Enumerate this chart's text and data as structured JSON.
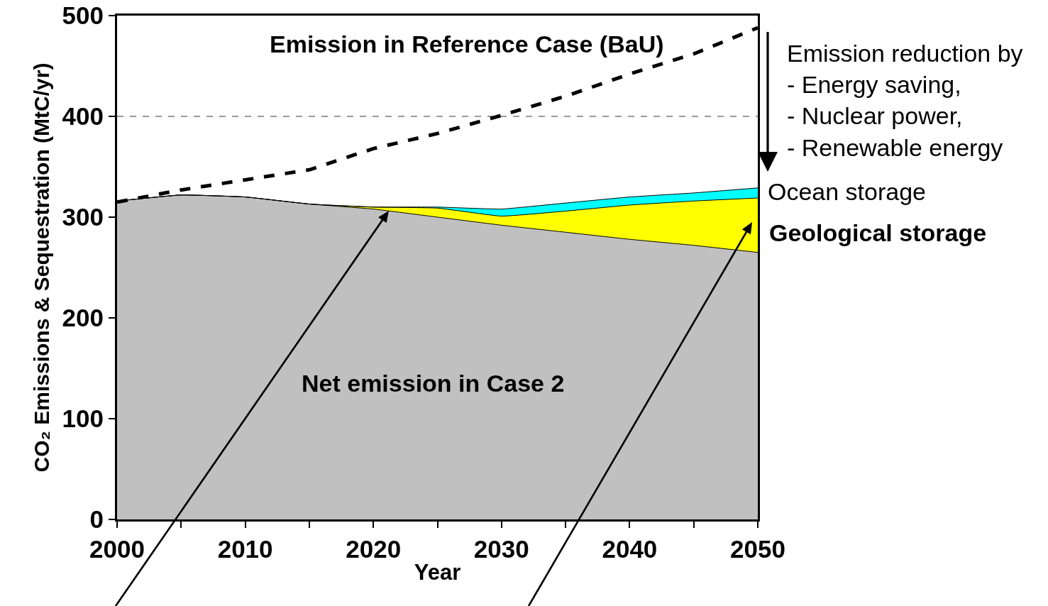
{
  "chart_data": {
    "type": "area",
    "stacked": true,
    "ylabel": "CO₂ Emissions & Sequestration (MtC/yr)",
    "xlabel": "Year",
    "x": [
      2000,
      2005,
      2010,
      2015,
      2020,
      2025,
      2030,
      2035,
      2040,
      2045,
      2050
    ],
    "series": [
      {
        "name": "Net emission in Case 2",
        "color": "#c0c0c0",
        "values": [
          316,
          322,
          320,
          313,
          308,
          300,
          292,
          285,
          278,
          272,
          265
        ]
      },
      {
        "name": "Geological storage",
        "color": "#ffff00",
        "values": [
          0,
          0,
          0,
          0,
          2,
          9,
          9,
          21,
          34,
          44,
          54
        ]
      },
      {
        "name": "Ocean storage",
        "color": "#00ffff",
        "values": [
          0,
          0,
          0,
          0,
          0,
          1,
          7,
          8,
          8,
          8,
          10
        ]
      },
      {
        "name": "Emission in Reference Case (BaU)",
        "type": "line",
        "color": "#000000",
        "line_style": "dashed",
        "values": [
          315,
          327,
          337,
          347,
          368,
          383,
          401,
          420,
          442,
          462,
          488
        ]
      }
    ],
    "xlim": [
      2000,
      2050
    ],
    "xticks": [
      2000,
      {
        "value": 2005,
        "label": null
      },
      2010,
      {
        "value": 2015,
        "label": null
      },
      2020,
      {
        "value": 2025,
        "label": null
      },
      2030,
      {
        "value": 2035,
        "label": null
      },
      2040,
      {
        "value": 2045,
        "label": null
      },
      2050
    ],
    "ylim": [
      0,
      500
    ],
    "yticks": [
      0,
      100,
      200,
      300,
      400,
      500
    ],
    "ref_lines": [
      {
        "axis": "y",
        "value": 400,
        "color": "#000000",
        "line_style": "dashed"
      }
    ],
    "annotations": [
      "Emission reduction by\n- Energy saving,\n- Nuclear power,\n- Renewable energy"
    ],
    "grid": false,
    "legend": false,
    "marker": "none"
  }
}
